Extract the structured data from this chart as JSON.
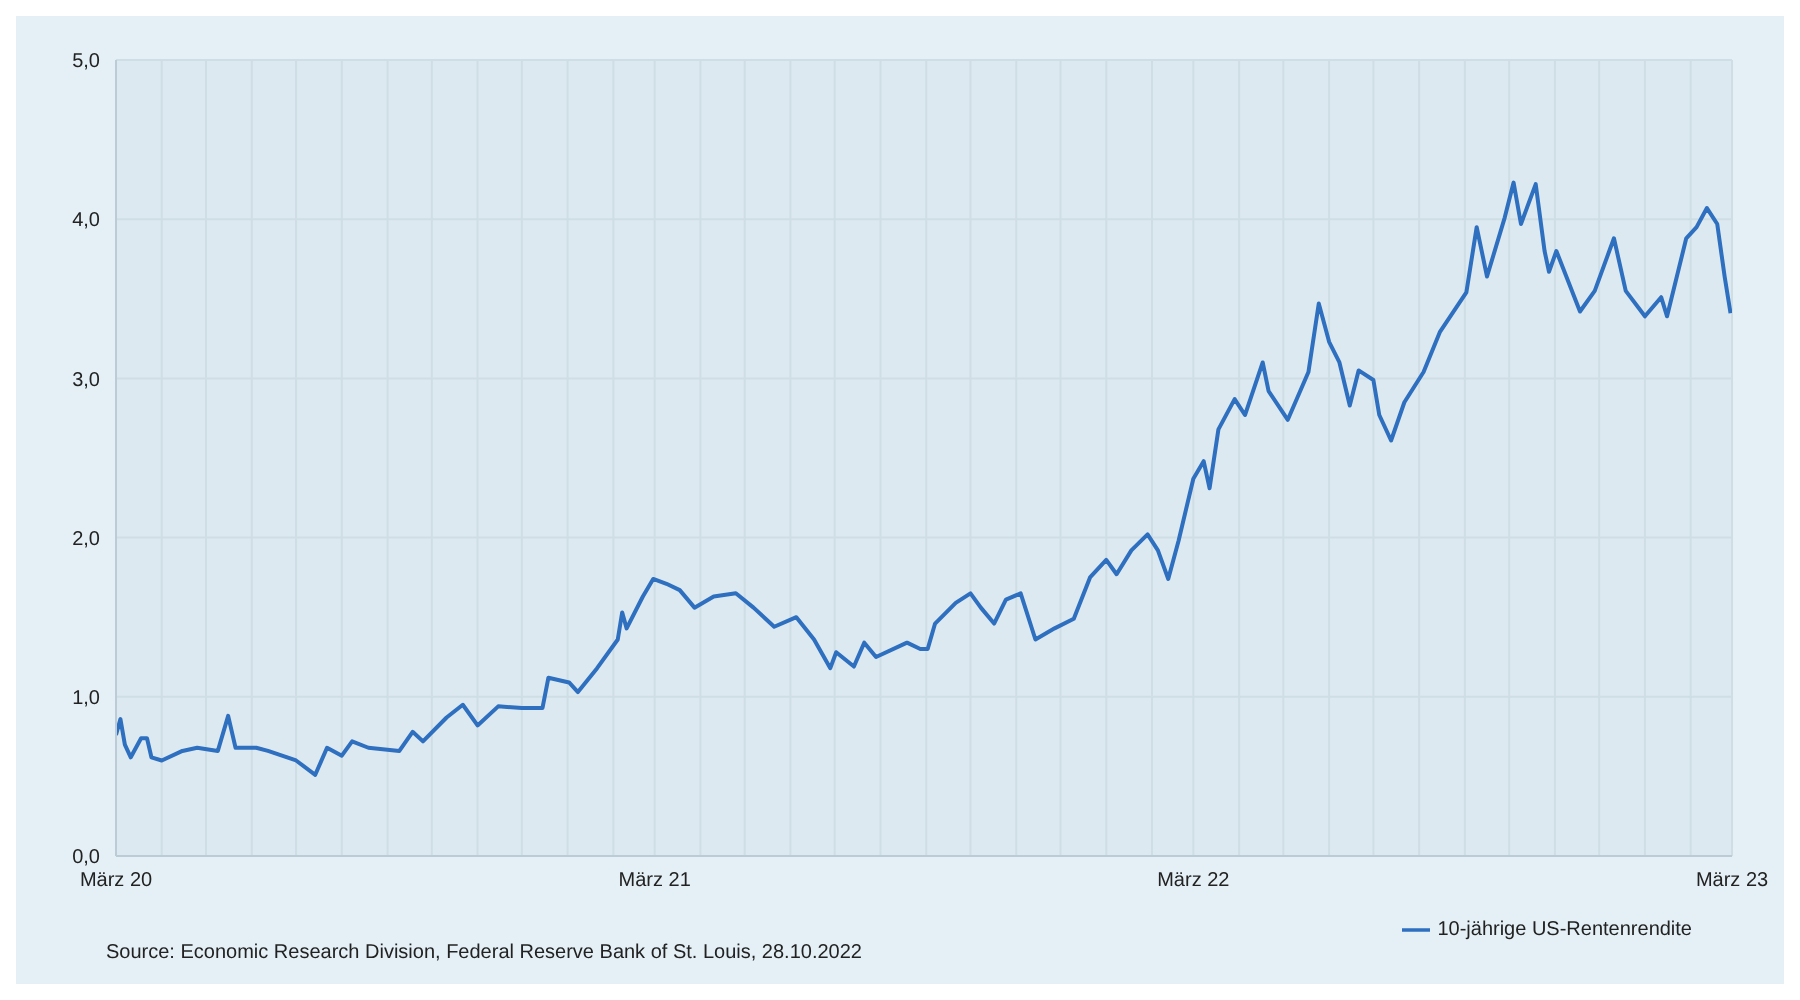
{
  "chart_data": {
    "type": "line",
    "annotations": [
      "Source: Economic Research Division, Federal Reserve Bank of St. Louis, 28.10.2022"
    ],
    "xlim": [
      "2020-03-01",
      "2023-03-01"
    ],
    "xticks": [
      {
        "value": "2020-03-01",
        "label": "März 20"
      },
      {
        "value": "2020-04-01",
        "label": null
      },
      {
        "value": "2020-05-01",
        "label": null
      },
      {
        "value": "2020-06-01",
        "label": null
      },
      {
        "value": "2020-07-01",
        "label": null
      },
      {
        "value": "2020-08-01",
        "label": null
      },
      {
        "value": "2020-09-01",
        "label": null
      },
      {
        "value": "2020-10-01",
        "label": null
      },
      {
        "value": "2020-11-01",
        "label": null
      },
      {
        "value": "2020-12-01",
        "label": null
      },
      {
        "value": "2021-01-01",
        "label": null
      },
      {
        "value": "2021-02-01",
        "label": null
      },
      {
        "value": "2021-03-01",
        "label": "März 21"
      },
      {
        "value": "2021-04-01",
        "label": null
      },
      {
        "value": "2021-05-01",
        "label": null
      },
      {
        "value": "2021-06-01",
        "label": null
      },
      {
        "value": "2021-07-01",
        "label": null
      },
      {
        "value": "2021-08-01",
        "label": null
      },
      {
        "value": "2021-09-01",
        "label": null
      },
      {
        "value": "2021-10-01",
        "label": null
      },
      {
        "value": "2021-11-01",
        "label": null
      },
      {
        "value": "2021-12-01",
        "label": null
      },
      {
        "value": "2022-01-01",
        "label": null
      },
      {
        "value": "2022-02-01",
        "label": null
      },
      {
        "value": "2022-03-01",
        "label": "März 22"
      },
      {
        "value": "2022-04-01",
        "label": null
      },
      {
        "value": "2022-05-01",
        "label": null
      },
      {
        "value": "2022-06-01",
        "label": null
      },
      {
        "value": "2022-07-01",
        "label": null
      },
      {
        "value": "2022-08-01",
        "label": null
      },
      {
        "value": "2022-09-01",
        "label": null
      },
      {
        "value": "2022-10-01",
        "label": null
      },
      {
        "value": "2022-11-01",
        "label": null
      },
      {
        "value": "2022-12-01",
        "label": null
      },
      {
        "value": "2023-01-01",
        "label": null
      },
      {
        "value": "2023-02-01",
        "label": null
      },
      {
        "value": "2023-03-01",
        "label": "März 23"
      }
    ],
    "ylim": [
      0,
      5
    ],
    "yticks": [
      {
        "value": 0,
        "label": "0,0"
      },
      {
        "value": 1,
        "label": "1,0"
      },
      {
        "value": 2,
        "label": "2,0"
      },
      {
        "value": 3,
        "label": "3,0"
      },
      {
        "value": 4,
        "label": "4,0"
      },
      {
        "value": 5,
        "label": "5,0"
      }
    ],
    "grid": true,
    "legend": "bottom right",
    "marker": "none",
    "line_style": "solid",
    "x": [
      "2020-03-01",
      "2020-03-04",
      "2020-03-07",
      "2020-03-11",
      "2020-03-18",
      "2020-03-22",
      "2020-03-25",
      "2020-04-01",
      "2020-04-15",
      "2020-04-25",
      "2020-05-09",
      "2020-05-16",
      "2020-05-21",
      "2020-06-04",
      "2020-06-12",
      "2020-07-01",
      "2020-07-14",
      "2020-07-22",
      "2020-08-01",
      "2020-08-08",
      "2020-08-19",
      "2020-09-09",
      "2020-09-18",
      "2020-09-25",
      "2020-10-11",
      "2020-10-22",
      "2020-11-01",
      "2020-11-15",
      "2020-12-01",
      "2020-12-15",
      "2020-12-19",
      "2021-01-02",
      "2021-01-08",
      "2021-01-21",
      "2021-02-04",
      "2021-02-07",
      "2021-02-10",
      "2021-02-21",
      "2021-02-28",
      "2021-03-09",
      "2021-03-18",
      "2021-03-28",
      "2021-04-10",
      "2021-04-25",
      "2021-05-07",
      "2021-05-21",
      "2021-06-05",
      "2021-06-17",
      "2021-06-28",
      "2021-07-02",
      "2021-07-14",
      "2021-07-21",
      "2021-07-29",
      "2021-08-19",
      "2021-08-28",
      "2021-09-02",
      "2021-09-07",
      "2021-09-21",
      "2021-10-01",
      "2021-10-08",
      "2021-10-17",
      "2021-10-25",
      "2021-11-04",
      "2021-11-14",
      "2021-11-27",
      "2021-12-10",
      "2021-12-21",
      "2022-01-01",
      "2022-01-08",
      "2022-01-18",
      "2022-01-29",
      "2022-02-05",
      "2022-02-12",
      "2022-02-19",
      "2022-03-01",
      "2022-03-08",
      "2022-03-12",
      "2022-03-18",
      "2022-03-29",
      "2022-04-05",
      "2022-04-17",
      "2022-04-21",
      "2022-05-04",
      "2022-05-18",
      "2022-05-25",
      "2022-06-01",
      "2022-06-08",
      "2022-06-15",
      "2022-06-21",
      "2022-07-01",
      "2022-07-05",
      "2022-07-13",
      "2022-07-22",
      "2022-08-04",
      "2022-08-15",
      "2022-09-02",
      "2022-09-09",
      "2022-09-16",
      "2022-09-28",
      "2022-10-04",
      "2022-10-09",
      "2022-10-19",
      "2022-10-25",
      "2022-10-28",
      "2022-11-02",
      "2022-11-18",
      "2022-11-28",
      "2022-12-11",
      "2022-12-19",
      "2023-01-01",
      "2023-01-12",
      "2023-01-16",
      "2023-01-29",
      "2023-02-05",
      "2023-02-12",
      "2023-02-19",
      "2023-02-24",
      "2023-02-28"
    ],
    "series": [
      {
        "name": "10-jährige US-Rentenrendite",
        "color": "#2e6fbf",
        "values": [
          0.76,
          0.86,
          0.7,
          0.62,
          0.74,
          0.74,
          0.62,
          0.6,
          0.66,
          0.68,
          0.66,
          0.88,
          0.68,
          0.68,
          0.66,
          0.6,
          0.51,
          0.68,
          0.63,
          0.72,
          0.68,
          0.66,
          0.78,
          0.72,
          0.87,
          0.95,
          0.82,
          0.94,
          0.93,
          0.93,
          1.12,
          1.09,
          1.03,
          1.18,
          1.36,
          1.53,
          1.43,
          1.63,
          1.74,
          1.71,
          1.67,
          1.56,
          1.63,
          1.65,
          1.56,
          1.44,
          1.5,
          1.36,
          1.18,
          1.28,
          1.19,
          1.34,
          1.25,
          1.34,
          1.3,
          1.3,
          1.46,
          1.59,
          1.65,
          1.56,
          1.46,
          1.61,
          1.65,
          1.36,
          1.43,
          1.49,
          1.75,
          1.86,
          1.77,
          1.92,
          2.02,
          1.92,
          1.74,
          1.98,
          2.37,
          2.48,
          2.31,
          2.68,
          2.87,
          2.77,
          3.1,
          2.92,
          2.74,
          3.04,
          3.47,
          3.23,
          3.1,
          2.83,
          3.05,
          2.99,
          2.77,
          2.61,
          2.85,
          3.04,
          3.29,
          3.54,
          3.95,
          3.64,
          4.01,
          4.23,
          3.97,
          4.22,
          3.8,
          3.67,
          3.8,
          3.42,
          3.55,
          3.88,
          3.55,
          3.39,
          3.51,
          3.39,
          3.88,
          3.95,
          4.07,
          3.97,
          3.64,
          3.41
        ]
      }
    ]
  }
}
